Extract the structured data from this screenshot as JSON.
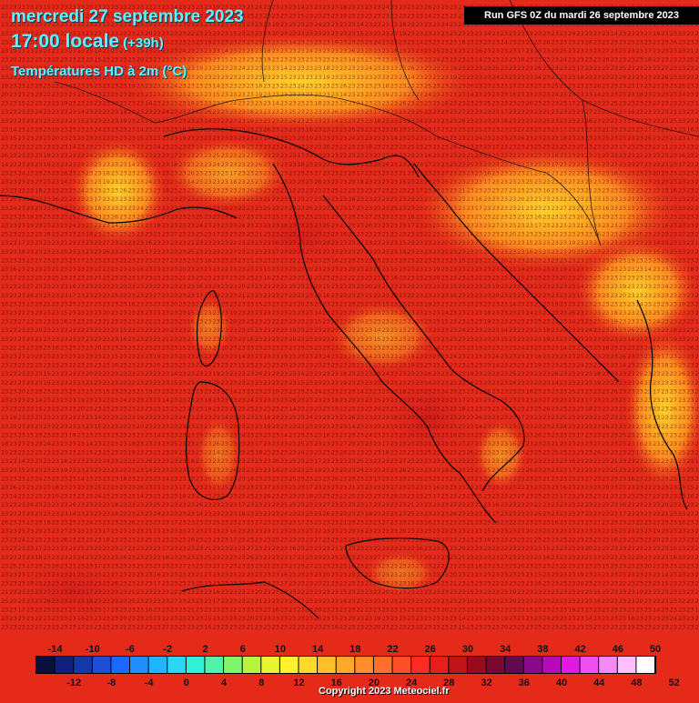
{
  "header": {
    "date": "mercredi 27 septembre 2023",
    "time": "17:00 locale",
    "offset": "(+39h)",
    "field": "Températures HD à 2m (°C)"
  },
  "run_label": "Run GFS 0Z du mardi 26 septembre 2023",
  "copyright": "Copyright 2023 Meteociel.fr",
  "legend": {
    "top_labels": [
      "-14",
      "-10",
      "-6",
      "-2",
      "2",
      "6",
      "10",
      "14",
      "18",
      "22",
      "26",
      "30",
      "34",
      "38",
      "42",
      "46",
      "50"
    ],
    "bottom_labels": [
      "-12",
      "-8",
      "-4",
      "0",
      "4",
      "8",
      "12",
      "16",
      "20",
      "24",
      "28",
      "32",
      "36",
      "40",
      "44",
      "48",
      "52"
    ],
    "colors": [
      "#0a0f3c",
      "#12207a",
      "#1537a8",
      "#1c4fd4",
      "#1a6aff",
      "#1f8eff",
      "#20b6ff",
      "#2ad7f5",
      "#30f0d8",
      "#4ff5a5",
      "#7ff56a",
      "#b8f53a",
      "#e6f530",
      "#fff12a",
      "#ffd82a",
      "#ffbf2a",
      "#ffa82a",
      "#ff8e2a",
      "#ff6e2a",
      "#ff4e2a",
      "#ff2a22",
      "#e61f1a",
      "#c0141a",
      "#9a0a1a",
      "#7a0830",
      "#600a50",
      "#8a0a8a",
      "#b80ab8",
      "#e01ae0",
      "#f04ff0",
      "#f888f8",
      "#ffc0ff",
      "#ffffff"
    ]
  },
  "grid": {
    "base": "23",
    "sample_values": [
      "22",
      "23",
      "24",
      "25",
      "21",
      "20",
      "19",
      "18",
      "17",
      "16",
      "15",
      "14",
      "26",
      "27"
    ]
  }
}
